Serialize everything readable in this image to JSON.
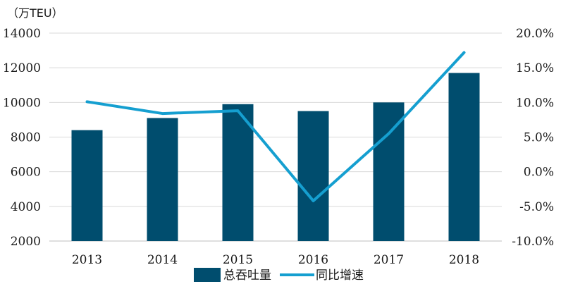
{
  "chart_data": {
    "type": "bar",
    "categories": [
      "2013",
      "2014",
      "2015",
      "2016",
      "2017",
      "2018"
    ],
    "unit_label": "（万TEU）",
    "series": [
      {
        "name": "总吞吐量",
        "type": "bar",
        "axis": "left",
        "color": "#004d6e",
        "values": [
          8400,
          9100,
          9900,
          9500,
          10000,
          11700
        ]
      },
      {
        "name": "同比增速",
        "type": "line",
        "axis": "right",
        "color": "#159fd0",
        "values": [
          10.1,
          8.4,
          8.8,
          -4.2,
          5.5,
          17.2
        ]
      }
    ],
    "y_left": {
      "min": 2000,
      "max": 14000,
      "ticks": [
        "2000",
        "4000",
        "6000",
        "8000",
        "10000",
        "12000",
        "14000"
      ]
    },
    "y_right": {
      "min": -10,
      "max": 20,
      "ticks": [
        "-10.0%",
        "-5.0%",
        "0.0%",
        "5.0%",
        "10.0%",
        "15.0%",
        "20.0%"
      ]
    },
    "grid": true,
    "legend_position": "bottom"
  }
}
